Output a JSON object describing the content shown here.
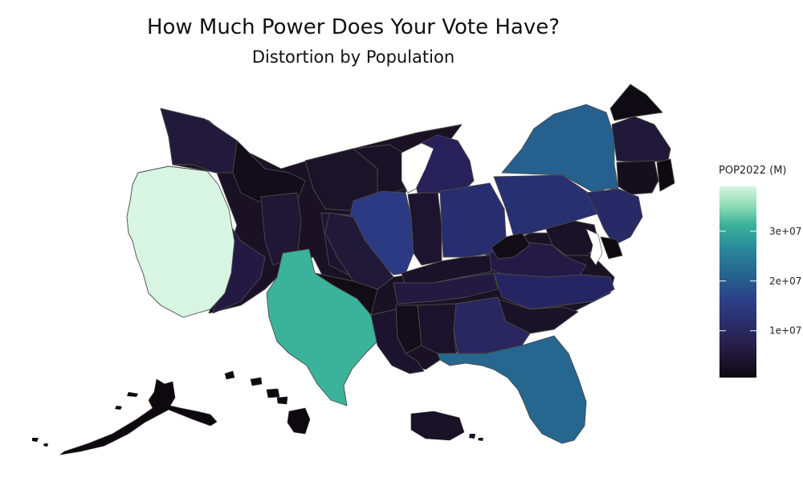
{
  "title": "How Much Power Does Your Vote Have?",
  "subtitle": "Distortion by Population",
  "legend": {
    "title": "POP2022 (M)",
    "ticks": [
      {
        "label": "1e+07",
        "value": 10000000
      },
      {
        "label": "2e+07",
        "value": 20000000
      },
      {
        "label": "3e+07",
        "value": 30000000
      }
    ],
    "min": 600000,
    "max": 39000000,
    "colors": [
      "#0d090f",
      "#2a1f4d",
      "#2b3f88",
      "#27678f",
      "#2a8a9a",
      "#3bb39a",
      "#8fdcb6",
      "#d8f4e2"
    ]
  },
  "chart_data": {
    "type": "choropleth",
    "title": "How Much Power Does Your Vote Have?",
    "subtitle": "Distortion by Population",
    "legend_title": "POP2022 (M)",
    "legend_placement": "right",
    "scale": {
      "min": 600000,
      "max": 39000000,
      "breaks": [
        10000000,
        20000000,
        30000000
      ]
    }
  }
}
